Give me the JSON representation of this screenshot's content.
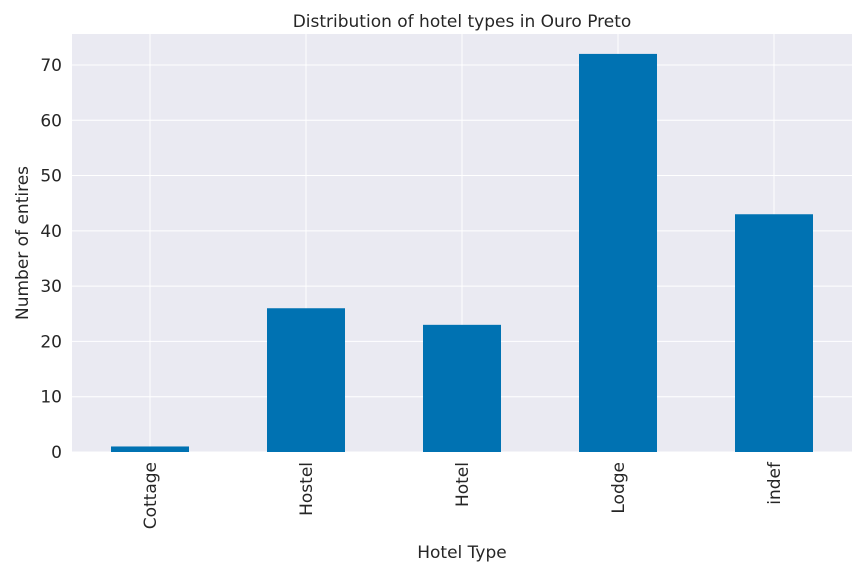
{
  "chart_data": {
    "type": "bar",
    "title": "Distribution of hotel types in Ouro Preto",
    "xlabel": "Hotel Type",
    "ylabel": "Number of entires",
    "categories": [
      "Cottage",
      "Hostel",
      "Hotel",
      "Lodge",
      "indef"
    ],
    "values": [
      1,
      26,
      23,
      72,
      43
    ],
    "ylim": [
      0,
      75.6
    ],
    "yticks": [
      0,
      10,
      20,
      30,
      40,
      50,
      60,
      70
    ],
    "grid": true,
    "colors": {
      "bar": "#0072b2",
      "background": "#eaeaf2",
      "grid": "#ffffff",
      "text": "#262626"
    }
  }
}
